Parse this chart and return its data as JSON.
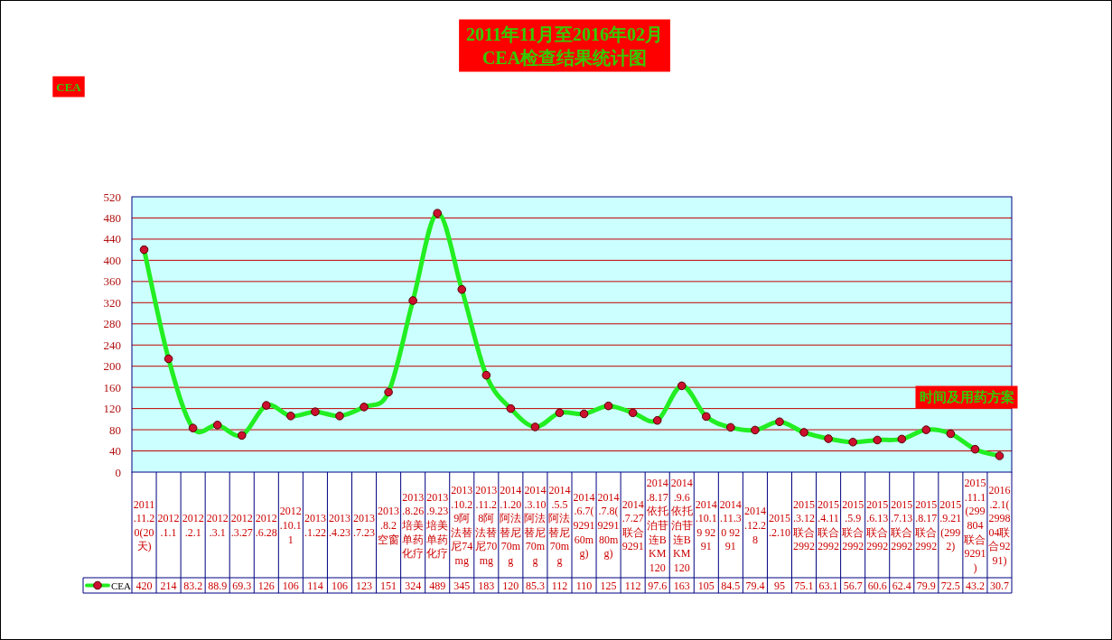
{
  "chart_data": {
    "type": "line",
    "title": "2011年11月至2016年02月",
    "subtitle": "CEA检查结果统计图",
    "annotations": [
      "CEA"
    ],
    "xlabel": "时间及用药方案",
    "categories": [
      "2011.11.20(20天)",
      "2012.1.1",
      "2012.2.1",
      "2012.3.1",
      "2012.3.27",
      "2012.6.28",
      "2012.10.11",
      "2013.1.22",
      "2013.4.23",
      "2013.7.23",
      "2013.8.2空窗",
      "2013.8.26培美单药化疗",
      "2013.9.23培美单药化疗",
      "2013.10.29阿法替尼74mg",
      "2013.11.28阿法替尼70mg",
      "2014.1.20阿法替尼70mg",
      "2014.3.10阿法替尼70mg",
      "2014.5.5阿法替尼70mg",
      "2014.6.7(9291 60mg)",
      "2014.7.8(9291 80mg)",
      "2014.7.27联合9291",
      "2014.8.17依托泊苷连BKM120",
      "2014.9.6依托泊苷连BKM120",
      "2014.10.19 9291",
      "2014.11.30 9291",
      "2014.12.28",
      "2015.2.10",
      "2015.3.12联合2992",
      "2015.4.11联合2992",
      "2015.5.9联合2992",
      "2015.6.13联合2992",
      "2015.7.13联合2992",
      "2015.8.17联合2992",
      "2015.9.21(2992)",
      "2015.11.1(299804联合9291)",
      "2016.2.1(299804联合9291)"
    ],
    "series": [
      {
        "name": "CEA",
        "color": "#22ee22",
        "values": [
          420,
          214,
          83.2,
          88.9,
          69.3,
          126,
          106,
          114,
          106,
          123,
          151,
          324,
          489,
          345,
          183,
          120,
          85.3,
          112,
          110,
          125,
          112,
          97.6,
          163,
          105,
          84.5,
          79.4,
          95,
          75.1,
          63.1,
          56.7,
          60.6,
          62.4,
          79.9,
          72.5,
          43.2,
          30.7
        ]
      }
    ],
    "ylim": [
      0,
      520
    ],
    "yticks": [
      0,
      40,
      80,
      120,
      160,
      200,
      240,
      280,
      320,
      360,
      400,
      440,
      480,
      520
    ],
    "grid": "y",
    "legend": "bottom",
    "marker": "circle",
    "line_style": "solid",
    "data_labels": true
  }
}
